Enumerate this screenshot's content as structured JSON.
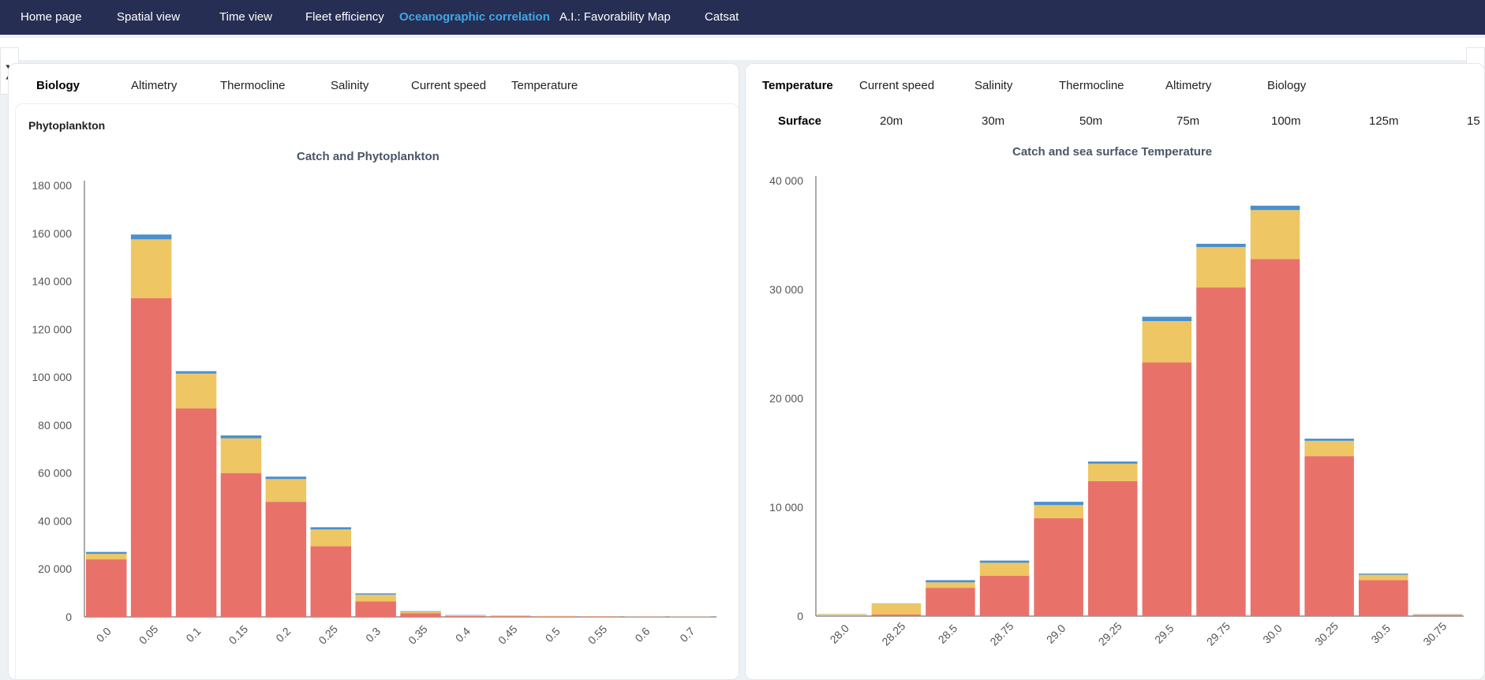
{
  "nav": {
    "items": [
      {
        "label": "Home page"
      },
      {
        "label": "Spatial view"
      },
      {
        "label": "Time view"
      },
      {
        "label": "Fleet efficiency"
      },
      {
        "label": "Oceanographic correlation",
        "active": true
      },
      {
        "label": "A.I.: Favorability Map"
      },
      {
        "label": "Catsat"
      }
    ],
    "background": "#272e53",
    "active_color": "#3fa7e6"
  },
  "left_panel": {
    "tabs": [
      {
        "label": "Biology",
        "active": true
      },
      {
        "label": "Altimetry"
      },
      {
        "label": "Thermocline"
      },
      {
        "label": "Salinity"
      },
      {
        "label": "Current speed"
      },
      {
        "label": "Temperature"
      }
    ],
    "card_title": "Phytoplankton",
    "toggle_icon": "chevron-right-icon"
  },
  "right_panel": {
    "tabs": [
      {
        "label": "Temperature",
        "active": true
      },
      {
        "label": "Current speed"
      },
      {
        "label": "Salinity"
      },
      {
        "label": "Thermocline"
      },
      {
        "label": "Altimetry"
      },
      {
        "label": "Biology"
      }
    ],
    "depth_tabs": [
      {
        "label": "Surface",
        "active": true
      },
      {
        "label": "20m"
      },
      {
        "label": "30m"
      },
      {
        "label": "50m"
      },
      {
        "label": "75m"
      },
      {
        "label": "100m"
      },
      {
        "label": "125m"
      },
      {
        "label": "15"
      }
    ],
    "toggle_icon": "chevron-left-icon"
  },
  "series_colors": [
    "#e8726a",
    "#eec663",
    "#4a90cc"
  ],
  "chart_data": [
    {
      "type": "bar",
      "stacked": true,
      "title": "Catch and Phytoplankton",
      "xlabel": "",
      "ylabel": "",
      "categories": [
        "0.0",
        "0.05",
        "0.1",
        "0.15",
        "0.2",
        "0.25",
        "0.3",
        "0.35",
        "0.4",
        "0.45",
        "0.5",
        "0.55",
        "0.6",
        "0.7"
      ],
      "series": [
        {
          "values": [
            24000,
            133000,
            87000,
            60000,
            48000,
            29500,
            6500,
            1500,
            400,
            300,
            200,
            150,
            100,
            80
          ]
        },
        {
          "values": [
            2300,
            24500,
            14500,
            14500,
            9500,
            7000,
            2800,
            700,
            300,
            200,
            150,
            100,
            80,
            60
          ]
        },
        {
          "values": [
            800,
            2000,
            1000,
            1200,
            1000,
            900,
            500,
            200,
            100,
            50,
            30,
            20,
            20,
            10
          ]
        }
      ],
      "ylim": [
        0,
        180000
      ],
      "yticks": [
        0,
        20000,
        40000,
        60000,
        80000,
        100000,
        120000,
        140000,
        160000,
        180000
      ],
      "ytick_labels": [
        "0",
        "20 000",
        "40 000",
        "60 000",
        "80 000",
        "100 000",
        "120 000",
        "140 000",
        "160 000",
        "180 000"
      ],
      "grid": false,
      "legend": "none"
    },
    {
      "type": "bar",
      "stacked": true,
      "title": "Catch and sea surface Temperature",
      "xlabel": "",
      "ylabel": "",
      "categories": [
        "28.0",
        "28.25",
        "28.5",
        "28.75",
        "29.0",
        "29.25",
        "29.5",
        "29.75",
        "30.0",
        "30.25",
        "30.5",
        "30.75"
      ],
      "series": [
        {
          "values": [
            50,
            150,
            2600,
            3700,
            9000,
            12400,
            23300,
            30200,
            32800,
            14700,
            3300,
            100
          ]
        },
        {
          "values": [
            100,
            1000,
            500,
            1200,
            1200,
            1600,
            3800,
            3700,
            4500,
            1400,
            500,
            50
          ]
        },
        {
          "values": [
            20,
            20,
            200,
            200,
            300,
            200,
            400,
            300,
            400,
            200,
            100,
            20
          ]
        }
      ],
      "ylim": [
        0,
        40000
      ],
      "yticks": [
        0,
        10000,
        20000,
        30000,
        40000
      ],
      "ytick_labels": [
        "0",
        "10 000",
        "20 000",
        "30 000",
        "40 000"
      ],
      "grid": false,
      "legend": "none"
    }
  ]
}
